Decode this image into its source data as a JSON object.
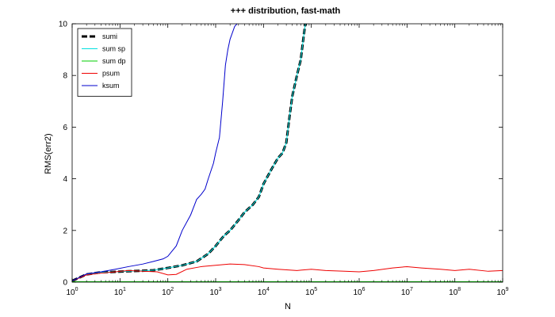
{
  "chart_data": {
    "type": "line",
    "title": "+++ distribution, fast-math",
    "xlabel": "N",
    "ylabel": "RMS(err2)",
    "xscale": "log",
    "xlim": [
      1,
      1000000000
    ],
    "ylim": [
      0,
      10
    ],
    "x_ticks": [
      {
        "base": "10",
        "exp": "0"
      },
      {
        "base": "10",
        "exp": "1"
      },
      {
        "base": "10",
        "exp": "2"
      },
      {
        "base": "10",
        "exp": "3"
      },
      {
        "base": "10",
        "exp": "4"
      },
      {
        "base": "10",
        "exp": "5"
      },
      {
        "base": "10",
        "exp": "6"
      },
      {
        "base": "10",
        "exp": "7"
      },
      {
        "base": "10",
        "exp": "8"
      },
      {
        "base": "10",
        "exp": "9"
      }
    ],
    "y_ticks": [
      "0",
      "2",
      "4",
      "6",
      "8",
      "10"
    ],
    "grid": false,
    "legend_position": "top-left",
    "series": [
      {
        "name": "sumi",
        "color": "#000000",
        "style": "dashed-thick",
        "points": [
          [
            1,
            0.05
          ],
          [
            2,
            0.3
          ],
          [
            4,
            0.38
          ],
          [
            8,
            0.4
          ],
          [
            15,
            0.42
          ],
          [
            30,
            0.44
          ],
          [
            50,
            0.46
          ],
          [
            100,
            0.55
          ],
          [
            200,
            0.65
          ],
          [
            400,
            0.8
          ],
          [
            700,
            1.1
          ],
          [
            1000,
            1.4
          ],
          [
            1500,
            1.8
          ],
          [
            2000,
            2.0
          ],
          [
            3000,
            2.4
          ],
          [
            4000,
            2.7
          ],
          [
            6000,
            3.0
          ],
          [
            8000,
            3.3
          ],
          [
            10000,
            3.8
          ],
          [
            15000,
            4.4
          ],
          [
            20000,
            4.8
          ],
          [
            25000,
            5.0
          ],
          [
            30000,
            5.4
          ],
          [
            35000,
            6.4
          ],
          [
            40000,
            7.2
          ],
          [
            50000,
            8.0
          ],
          [
            60000,
            8.6
          ],
          [
            70000,
            9.6
          ],
          [
            75000,
            10.0
          ]
        ]
      },
      {
        "name": "sum sp",
        "color": "#00e0e0",
        "style": "solid",
        "points": [
          [
            1,
            0.05
          ],
          [
            2,
            0.3
          ],
          [
            4,
            0.38
          ],
          [
            8,
            0.4
          ],
          [
            15,
            0.42
          ],
          [
            30,
            0.44
          ],
          [
            50,
            0.46
          ],
          [
            100,
            0.55
          ],
          [
            200,
            0.65
          ],
          [
            400,
            0.8
          ],
          [
            700,
            1.1
          ],
          [
            1000,
            1.4
          ],
          [
            1500,
            1.8
          ],
          [
            2000,
            2.0
          ],
          [
            3000,
            2.4
          ],
          [
            4000,
            2.7
          ],
          [
            6000,
            3.0
          ],
          [
            8000,
            3.3
          ],
          [
            10000,
            3.8
          ],
          [
            15000,
            4.4
          ],
          [
            20000,
            4.8
          ],
          [
            25000,
            5.0
          ],
          [
            30000,
            5.4
          ],
          [
            35000,
            6.4
          ],
          [
            40000,
            7.2
          ],
          [
            50000,
            8.0
          ],
          [
            60000,
            8.6
          ],
          [
            70000,
            9.6
          ],
          [
            75000,
            10.0
          ]
        ]
      },
      {
        "name": "sum dp",
        "color": "#00cc00",
        "style": "solid",
        "points": [
          [
            1,
            0.02
          ],
          [
            10,
            0.02
          ],
          [
            100,
            0.02
          ],
          [
            1000,
            0.02
          ],
          [
            10000,
            0.02
          ],
          [
            100000,
            0.02
          ],
          [
            1000000,
            0.02
          ],
          [
            10000000,
            0.02
          ],
          [
            100000000,
            0.02
          ],
          [
            1000000000,
            0.02
          ]
        ]
      },
      {
        "name": "psum",
        "color": "#ee0000",
        "style": "solid",
        "points": [
          [
            1,
            0.05
          ],
          [
            2,
            0.28
          ],
          [
            4,
            0.35
          ],
          [
            8,
            0.4
          ],
          [
            15,
            0.45
          ],
          [
            30,
            0.42
          ],
          [
            60,
            0.4
          ],
          [
            100,
            0.28
          ],
          [
            150,
            0.3
          ],
          [
            250,
            0.5
          ],
          [
            500,
            0.6
          ],
          [
            1000,
            0.65
          ],
          [
            2000,
            0.7
          ],
          [
            4000,
            0.68
          ],
          [
            8000,
            0.6
          ],
          [
            10000,
            0.55
          ],
          [
            20000,
            0.5
          ],
          [
            50000,
            0.45
          ],
          [
            100000,
            0.5
          ],
          [
            200000,
            0.45
          ],
          [
            500000,
            0.42
          ],
          [
            1000000,
            0.4
          ],
          [
            2000000,
            0.45
          ],
          [
            5000000,
            0.55
          ],
          [
            10000000,
            0.6
          ],
          [
            20000000,
            0.55
          ],
          [
            50000000,
            0.5
          ],
          [
            100000000,
            0.45
          ],
          [
            200000000,
            0.5
          ],
          [
            500000000,
            0.42
          ],
          [
            1000000000,
            0.45
          ]
        ]
      },
      {
        "name": "ksum",
        "color": "#0000cc",
        "style": "solid",
        "points": [
          [
            1,
            0.05
          ],
          [
            2,
            0.32
          ],
          [
            4,
            0.4
          ],
          [
            8,
            0.5
          ],
          [
            15,
            0.6
          ],
          [
            30,
            0.7
          ],
          [
            50,
            0.8
          ],
          [
            80,
            0.9
          ],
          [
            100,
            1.0
          ],
          [
            150,
            1.4
          ],
          [
            200,
            2.0
          ],
          [
            300,
            2.6
          ],
          [
            400,
            3.2
          ],
          [
            500,
            3.4
          ],
          [
            600,
            3.6
          ],
          [
            700,
            4.0
          ],
          [
            900,
            4.6
          ],
          [
            1000,
            5.0
          ],
          [
            1200,
            5.6
          ],
          [
            1400,
            7.0
          ],
          [
            1600,
            8.4
          ],
          [
            1800,
            9.0
          ],
          [
            2000,
            9.4
          ],
          [
            2500,
            9.9
          ],
          [
            2800,
            10.0
          ]
        ]
      }
    ]
  }
}
